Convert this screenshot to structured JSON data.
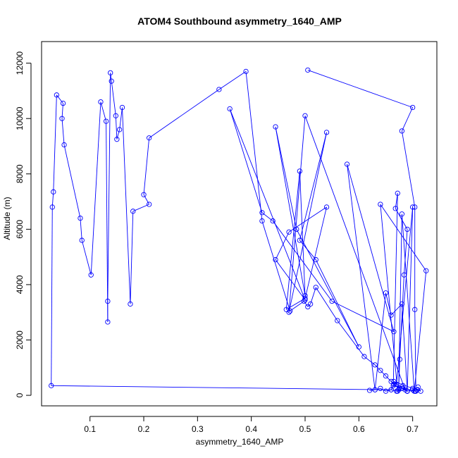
{
  "chart_data": {
    "type": "line",
    "title": "ATOM4 Southbound asymmetry_1640_AMP",
    "xlabel": "asymmetry_1640_AMP",
    "ylabel": "Altitude (m)",
    "xlim": [
      0.01,
      0.745
    ],
    "ylim": [
      -380,
      12780
    ],
    "xticks": [
      0.1,
      0.2,
      0.3,
      0.4,
      0.5,
      0.6,
      0.7
    ],
    "xtick_labels": [
      "0.1",
      "0.2",
      "0.3",
      "0.4",
      "0.5",
      "0.6",
      "0.7"
    ],
    "yticks": [
      0,
      2000,
      4000,
      6000,
      8000,
      10000,
      12000
    ],
    "ytick_labels": [
      "0",
      "2000",
      "4000",
      "6000",
      "8000",
      "10000",
      "12000"
    ],
    "grid": false,
    "legend": "none",
    "marker": "open circle",
    "colors": {
      "series": "#0000ff",
      "axes": "#000000",
      "background": "#ffffff"
    },
    "series": [
      {
        "x": [
          0.505,
          0.7,
          0.68,
          0.704,
          0.704,
          0.706,
          0.664,
          0.672,
          0.668,
          0.69,
          0.684,
          0.676,
          0.674,
          0.68,
          0.703,
          0.725,
          0.64,
          0.672,
          0.686,
          0.5,
          0.47,
          0.54,
          0.49,
          0.52,
          0.6,
          0.484,
          0.445,
          0.5,
          0.49,
          0.465,
          0.5,
          0.54,
          0.47,
          0.445,
          0.5,
          0.36,
          0.42,
          0.44,
          0.55,
          0.665,
          0.578,
          0.63,
          0.65,
          0.66,
          0.68,
          0.69,
          0.7,
          0.67,
          0.66,
          0.65,
          0.64,
          0.63,
          0.61,
          0.56,
          0.52,
          0.51,
          0.505,
          0.498,
          0.472,
          0.42,
          0.39,
          0.34,
          0.21,
          0.2,
          0.21,
          0.18,
          0.175,
          0.16,
          0.155,
          0.15,
          0.148,
          0.14,
          0.138,
          0.133,
          0.133,
          0.13,
          0.12,
          0.102,
          0.085,
          0.082,
          0.052,
          0.048,
          0.05,
          0.038,
          0.032,
          0.03,
          0.028,
          0.66,
          0.665,
          0.675,
          0.682,
          0.69,
          0.665,
          0.7,
          0.705,
          0.708,
          0.715,
          0.71,
          0.7,
          0.69,
          0.68,
          0.67,
          0.66,
          0.65,
          0.64,
          0.63,
          0.62
        ],
        "y": [
          11750,
          10400,
          9550,
          6800,
          3100,
          150,
          350,
          7300,
          6750,
          6000,
          4350,
          1300,
          200,
          6550,
          150,
          4500,
          6900,
          150,
          200,
          10100,
          3000,
          9500,
          5600,
          4900,
          1750,
          6000,
          9700,
          3600,
          8100,
          3100,
          3500,
          6800,
          5900,
          4900,
          3450,
          10350,
          6600,
          6300,
          3400,
          2300,
          8350,
          200,
          3700,
          2900,
          3300,
          150,
          6800,
          400,
          500,
          700,
          900,
          1100,
          1400,
          2700,
          3900,
          3300,
          3200,
          3400,
          3050,
          6300,
          11700,
          11050,
          9300,
          7250,
          6900,
          6650,
          3300,
          10400,
          9600,
          9250,
          10100,
          11350,
          11650,
          3400,
          2650,
          9900,
          10600,
          4350,
          5600,
          6400,
          9050,
          10000,
          10550,
          10850,
          7350,
          6800,
          350,
          200,
          400,
          250,
          350,
          150,
          500,
          250,
          150,
          200,
          150,
          300,
          200,
          150,
          250,
          150,
          200,
          150,
          250,
          200,
          180
        ]
      }
    ]
  }
}
